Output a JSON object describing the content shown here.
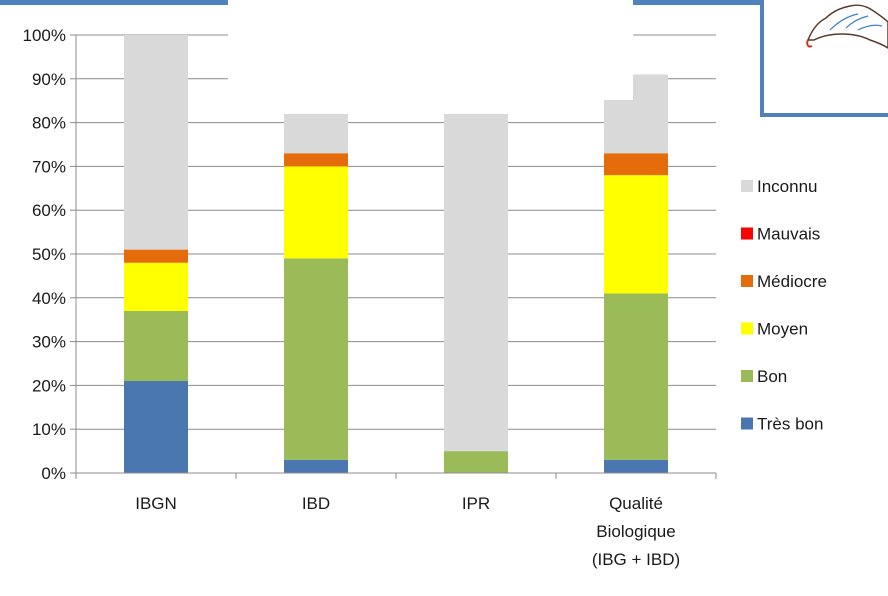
{
  "chart_data": {
    "type": "bar",
    "stacked": true,
    "categories": [
      [
        "IBGN"
      ],
      [
        "IBD"
      ],
      [
        "IPR"
      ],
      [
        "Qualité",
        "Biologique",
        "(IBG + IBD)"
      ]
    ],
    "series": [
      {
        "name": "Très bon",
        "color": "#4a77b0",
        "values": [
          21,
          3,
          0,
          3
        ]
      },
      {
        "name": "Bon",
        "color": "#9bbb59",
        "values": [
          16,
          46,
          5,
          38
        ]
      },
      {
        "name": "Moyen",
        "color": "#ffff00",
        "values": [
          11,
          21,
          0,
          27
        ]
      },
      {
        "name": "Médiocre",
        "color": "#e46c0a",
        "values": [
          3,
          3,
          0,
          5
        ]
      },
      {
        "name": "Mauvais",
        "color": "#ff0000",
        "values": [
          0,
          0,
          0,
          0
        ]
      },
      {
        "name": "Inconnu",
        "color": "#d9d9d9",
        "values": [
          49,
          9,
          77,
          18
        ]
      }
    ],
    "y_ticks": [
      "0%",
      "10%",
      "20%",
      "30%",
      "40%",
      "50%",
      "60%",
      "70%",
      "80%",
      "90%",
      "100%"
    ],
    "ylim": [
      0,
      100
    ],
    "grid": true,
    "legend_position": "right",
    "legend_order": [
      "Inconnu",
      "Mauvais",
      "Médiocre",
      "Moyen",
      "Bon",
      "Très bon"
    ],
    "title": "",
    "xlabel": "",
    "ylabel": ""
  },
  "decorations": {
    "accent_color": "#4f81bd"
  }
}
